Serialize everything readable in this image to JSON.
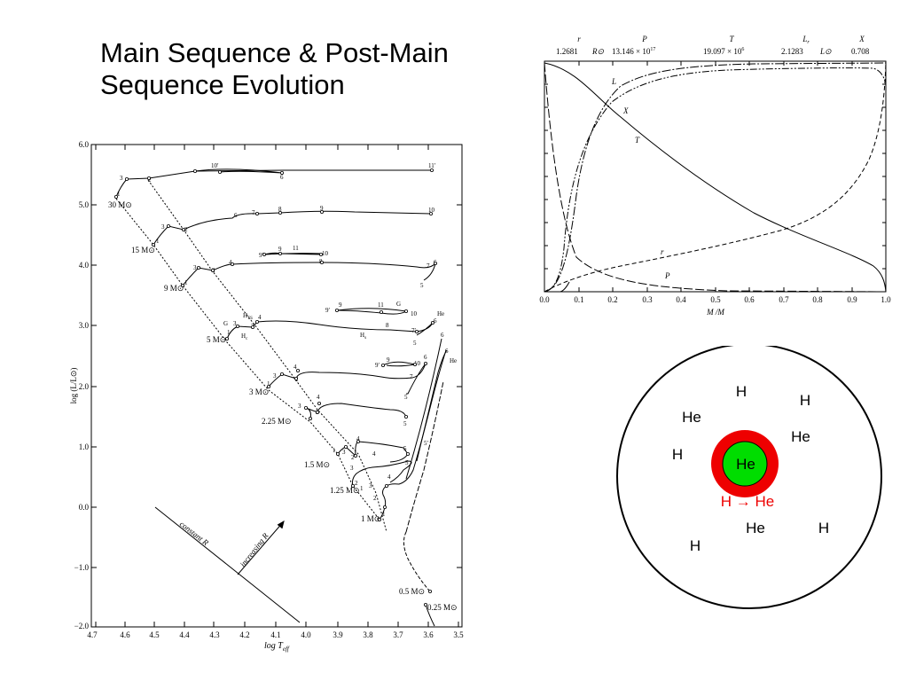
{
  "slide": {
    "title_line1": "Main Sequence & Post-Main",
    "title_line2": "Sequence Evolution"
  },
  "hr_diagram": {
    "x_axis_label": "log T",
    "x_axis_label_sub": "eff",
    "y_axis_label": "log (L/L⊙)",
    "x_ticks": [
      "4.7",
      "4.6",
      "4.5",
      "4.4",
      "4.3",
      "4.2",
      "4.1",
      "4.0",
      "3.9",
      "3.8",
      "3.7",
      "3.6",
      "3.5"
    ],
    "y_ticks": [
      "6.0",
      "5.0",
      "4.0",
      "3.0",
      "2.0",
      "1.0",
      "0.0",
      "−1.0",
      "−2.0"
    ],
    "mass_labels": [
      "30 M⊙",
      "15 M⊙",
      "9 M⊙",
      "5 M⊙",
      "3 M⊙",
      "2.25 M⊙",
      "1.5 M⊙",
      "1.25 M⊙",
      "1 M⊙",
      "0.5 M⊙",
      "0.25 M⊙"
    ],
    "constant_r_label": "constant R",
    "increasing_r_label": "increasing R",
    "point_labels": {
      "p1": "1",
      "p2": "2",
      "p3": "3",
      "p4": "4",
      "p5": "5",
      "p6": "6",
      "p7": "7",
      "p8": "8",
      "p9": "9",
      "p10": "10",
      "p11": "11",
      "p5prime": "5′",
      "p6prime": "6",
      "p7prime": "7′",
      "p9prime": "9′",
      "p10prime": "10′",
      "p11prime": "11′",
      "g": "G",
      "he": "He",
      "hts": "H",
      "hts_sub": "TS",
      "hc": "H",
      "hc_sub": "c",
      "hs": "H",
      "hs_sub": "s"
    }
  },
  "interior_chart": {
    "headers": [
      "r",
      "P",
      "T",
      "L",
      "X"
    ],
    "header_sub": "r",
    "header_values": [
      "1.2681",
      "13.146 × 10",
      "19.097 × 10",
      "2.1283",
      "0.708"
    ],
    "header_units": [
      "R⊙",
      "17",
      "6",
      "L⊙"
    ],
    "x_ticks": [
      "0.0",
      "0.1",
      "0.2",
      "0.3",
      "0.4",
      "0.5",
      "0.6",
      "0.7",
      "0.8",
      "0.9",
      "1.0"
    ],
    "x_label": "M /M",
    "curve_labels": [
      "L",
      "X",
      "T",
      "r",
      "P"
    ]
  },
  "star_diagram": {
    "core_label": "He",
    "shell_label": "H → He",
    "envelope_labels": [
      "H",
      "H",
      "He",
      "He",
      "H",
      "H",
      "He",
      "H",
      "H"
    ],
    "colors": {
      "core": "#00dd00",
      "shell": "#ee0000",
      "outline": "#000000"
    }
  }
}
